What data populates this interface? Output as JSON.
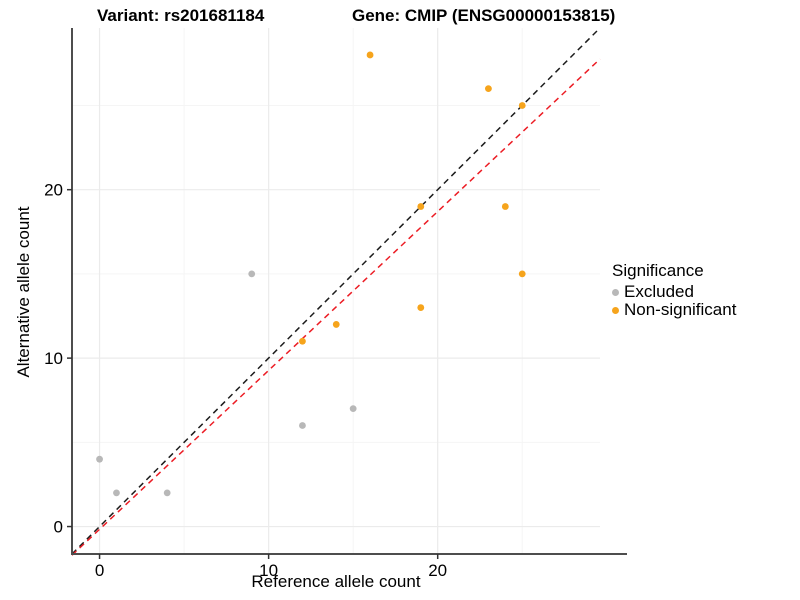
{
  "chart_data": {
    "type": "scatter",
    "titles": {
      "variant": "Variant: rs201681184",
      "gene": "Gene: CMIP (ENSG00000153815)"
    },
    "xlabel": "Reference allele count",
    "ylabel": "Alternative allele count",
    "xlim": [
      -1.63,
      29.6
    ],
    "ylim": [
      -1.63,
      29.6
    ],
    "x_ticks": [
      0,
      10,
      20
    ],
    "y_ticks": [
      0,
      10,
      20
    ],
    "x_tick_labels": [
      "0",
      "10",
      "20"
    ],
    "y_tick_labels": [
      "0",
      "10",
      "20"
    ],
    "minor_ticks": [
      5,
      15,
      25
    ],
    "grid": "on",
    "legend": {
      "title": "Significance",
      "position": "right",
      "entries": [
        {
          "label": "Excluded",
          "color": "#b8b8b8"
        },
        {
          "label": "Non-significant",
          "color": "#f6a41c"
        }
      ]
    },
    "series": [
      {
        "name": "Excluded",
        "color": "#b8b8b8",
        "points": [
          [
            0,
            4
          ],
          [
            1,
            2
          ],
          [
            4,
            2
          ],
          [
            9,
            15
          ],
          [
            12,
            6
          ],
          [
            15,
            7
          ]
        ]
      },
      {
        "name": "Non-significant",
        "color": "#f6a41c",
        "points": [
          [
            12,
            11
          ],
          [
            14,
            12
          ],
          [
            16,
            28
          ],
          [
            19,
            13
          ],
          [
            19,
            19
          ],
          [
            23,
            26
          ],
          [
            24,
            19
          ],
          [
            25,
            15
          ],
          [
            25,
            25
          ]
        ]
      }
    ],
    "lines": [
      {
        "name": "identity-line",
        "color": "#1c1c1c",
        "style": "dashed",
        "points": [
          [
            -1.63,
            -1.63
          ],
          [
            29.6,
            29.6
          ]
        ]
      },
      {
        "name": "trend-line",
        "color": "#ec1c24",
        "style": "dashed",
        "points": [
          [
            -1.63,
            -1.7
          ],
          [
            29.6,
            27.76
          ]
        ]
      }
    ],
    "colors": {
      "background": "#ffffff",
      "axis": "#4d4d4d",
      "grid_major": "#ebebeb",
      "grid_minor": "#f5f5f5",
      "tick": "#333333",
      "text": "#000000"
    }
  }
}
